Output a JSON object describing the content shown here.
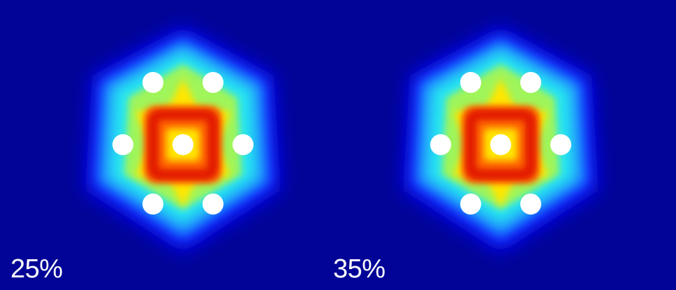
{
  "panels": [
    {
      "label": "25%"
    },
    {
      "label": "35%"
    }
  ],
  "colors": {
    "background": "#010496",
    "hole": "#ffffff",
    "label": "#ffffff",
    "colormap": [
      "#0a10ff",
      "#1f8bff",
      "#27e6f0",
      "#9ff55a",
      "#ffe600",
      "#ff6a00",
      "#e11400"
    ]
  },
  "holes_per_panel": 7
}
